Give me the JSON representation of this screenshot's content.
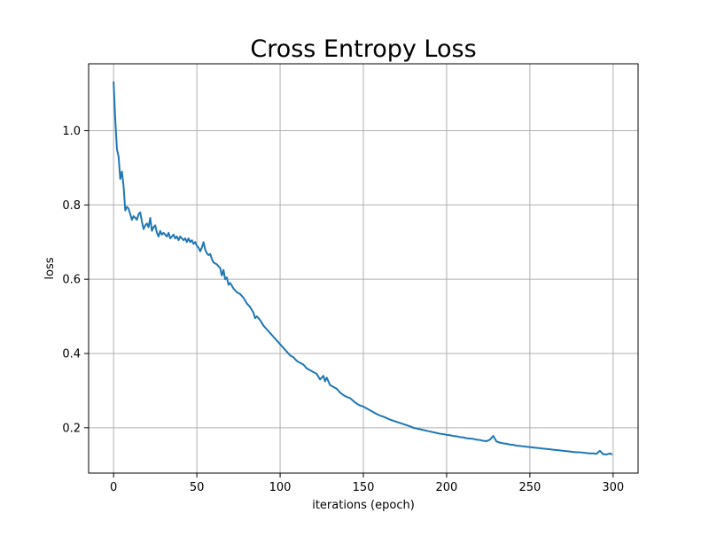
{
  "chart_data": {
    "type": "line",
    "title": "Cross Entropy Loss",
    "xlabel": "iterations (epoch)",
    "ylabel": "loss",
    "xlim": [
      -15,
      315
    ],
    "ylim": [
      0.078,
      1.18
    ],
    "grid": true,
    "xticks": [
      0,
      50,
      100,
      150,
      200,
      250,
      300
    ],
    "yticks": [
      0.2,
      0.4,
      0.6,
      0.8,
      1.0
    ],
    "xtick_labels": [
      "0",
      "50",
      "100",
      "150",
      "200",
      "250",
      "300"
    ],
    "ytick_labels": [
      "0.2",
      "0.4",
      "0.6",
      "0.8",
      "1.0"
    ],
    "series": [
      {
        "name": "loss",
        "color": "#1f77b4",
        "points": [
          [
            0,
            1.13
          ],
          [
            1,
            1.03
          ],
          [
            2,
            0.95
          ],
          [
            3,
            0.93
          ],
          [
            4,
            0.87
          ],
          [
            5,
            0.89
          ],
          [
            6,
            0.85
          ],
          [
            7,
            0.785
          ],
          [
            8,
            0.795
          ],
          [
            9,
            0.79
          ],
          [
            10,
            0.775
          ],
          [
            11,
            0.76
          ],
          [
            12,
            0.77
          ],
          [
            13,
            0.765
          ],
          [
            14,
            0.76
          ],
          [
            15,
            0.775
          ],
          [
            16,
            0.78
          ],
          [
            17,
            0.755
          ],
          [
            18,
            0.735
          ],
          [
            19,
            0.745
          ],
          [
            20,
            0.75
          ],
          [
            21,
            0.74
          ],
          [
            22,
            0.765
          ],
          [
            23,
            0.73
          ],
          [
            24,
            0.74
          ],
          [
            25,
            0.745
          ],
          [
            26,
            0.725
          ],
          [
            27,
            0.715
          ],
          [
            28,
            0.73
          ],
          [
            29,
            0.72
          ],
          [
            30,
            0.725
          ],
          [
            31,
            0.72
          ],
          [
            32,
            0.715
          ],
          [
            33,
            0.725
          ],
          [
            34,
            0.71
          ],
          [
            35,
            0.715
          ],
          [
            36,
            0.72
          ],
          [
            37,
            0.71
          ],
          [
            38,
            0.715
          ],
          [
            39,
            0.705
          ],
          [
            40,
            0.715
          ],
          [
            41,
            0.71
          ],
          [
            42,
            0.705
          ],
          [
            43,
            0.71
          ],
          [
            44,
            0.7
          ],
          [
            45,
            0.71
          ],
          [
            46,
            0.7
          ],
          [
            47,
            0.705
          ],
          [
            48,
            0.695
          ],
          [
            49,
            0.7
          ],
          [
            50,
            0.69
          ],
          [
            51,
            0.685
          ],
          [
            52,
            0.675
          ],
          [
            53,
            0.685
          ],
          [
            54,
            0.7
          ],
          [
            55,
            0.68
          ],
          [
            56,
            0.67
          ],
          [
            57,
            0.665
          ],
          [
            58,
            0.668
          ],
          [
            59,
            0.655
          ],
          [
            60,
            0.645
          ],
          [
            62,
            0.64
          ],
          [
            64,
            0.63
          ],
          [
            65,
            0.61
          ],
          [
            66,
            0.625
          ],
          [
            67,
            0.6
          ],
          [
            68,
            0.605
          ],
          [
            69,
            0.585
          ],
          [
            70,
            0.59
          ],
          [
            72,
            0.575
          ],
          [
            74,
            0.565
          ],
          [
            76,
            0.56
          ],
          [
            78,
            0.55
          ],
          [
            80,
            0.535
          ],
          [
            82,
            0.525
          ],
          [
            84,
            0.51
          ],
          [
            85,
            0.495
          ],
          [
            86,
            0.5
          ],
          [
            88,
            0.49
          ],
          [
            90,
            0.475
          ],
          [
            92,
            0.465
          ],
          [
            94,
            0.455
          ],
          [
            96,
            0.445
          ],
          [
            98,
            0.435
          ],
          [
            100,
            0.425
          ],
          [
            102,
            0.415
          ],
          [
            104,
            0.405
          ],
          [
            106,
            0.395
          ],
          [
            108,
            0.39
          ],
          [
            110,
            0.38
          ],
          [
            112,
            0.375
          ],
          [
            114,
            0.37
          ],
          [
            116,
            0.36
          ],
          [
            118,
            0.355
          ],
          [
            120,
            0.35
          ],
          [
            122,
            0.345
          ],
          [
            124,
            0.33
          ],
          [
            126,
            0.34
          ],
          [
            127,
            0.325
          ],
          [
            128,
            0.335
          ],
          [
            130,
            0.315
          ],
          [
            132,
            0.31
          ],
          [
            134,
            0.305
          ],
          [
            136,
            0.295
          ],
          [
            138,
            0.288
          ],
          [
            140,
            0.283
          ],
          [
            142,
            0.28
          ],
          [
            144,
            0.272
          ],
          [
            146,
            0.265
          ],
          [
            148,
            0.26
          ],
          [
            150,
            0.257
          ],
          [
            152,
            0.252
          ],
          [
            154,
            0.247
          ],
          [
            156,
            0.242
          ],
          [
            158,
            0.237
          ],
          [
            160,
            0.233
          ],
          [
            162,
            0.23
          ],
          [
            164,
            0.226
          ],
          [
            166,
            0.222
          ],
          [
            168,
            0.219
          ],
          [
            170,
            0.216
          ],
          [
            172,
            0.213
          ],
          [
            174,
            0.21
          ],
          [
            176,
            0.207
          ],
          [
            178,
            0.204
          ],
          [
            180,
            0.2
          ],
          [
            182,
            0.198
          ],
          [
            184,
            0.196
          ],
          [
            186,
            0.194
          ],
          [
            188,
            0.192
          ],
          [
            190,
            0.19
          ],
          [
            192,
            0.188
          ],
          [
            194,
            0.186
          ],
          [
            196,
            0.184
          ],
          [
            198,
            0.183
          ],
          [
            200,
            0.181
          ],
          [
            202,
            0.18
          ],
          [
            204,
            0.178
          ],
          [
            206,
            0.177
          ],
          [
            208,
            0.175
          ],
          [
            210,
            0.174
          ],
          [
            212,
            0.172
          ],
          [
            214,
            0.171
          ],
          [
            216,
            0.17
          ],
          [
            218,
            0.168
          ],
          [
            220,
            0.167
          ],
          [
            222,
            0.165
          ],
          [
            224,
            0.164
          ],
          [
            226,
            0.168
          ],
          [
            228,
            0.178
          ],
          [
            230,
            0.163
          ],
          [
            232,
            0.16
          ],
          [
            234,
            0.158
          ],
          [
            236,
            0.157
          ],
          [
            238,
            0.155
          ],
          [
            240,
            0.154
          ],
          [
            242,
            0.152
          ],
          [
            244,
            0.151
          ],
          [
            246,
            0.15
          ],
          [
            248,
            0.149
          ],
          [
            250,
            0.148
          ],
          [
            252,
            0.147
          ],
          [
            254,
            0.146
          ],
          [
            256,
            0.145
          ],
          [
            258,
            0.144
          ],
          [
            260,
            0.143
          ],
          [
            262,
            0.142
          ],
          [
            264,
            0.141
          ],
          [
            266,
            0.14
          ],
          [
            268,
            0.139
          ],
          [
            270,
            0.138
          ],
          [
            272,
            0.137
          ],
          [
            274,
            0.136
          ],
          [
            276,
            0.135
          ],
          [
            278,
            0.134
          ],
          [
            280,
            0.134
          ],
          [
            282,
            0.133
          ],
          [
            284,
            0.132
          ],
          [
            286,
            0.131
          ],
          [
            288,
            0.131
          ],
          [
            290,
            0.13
          ],
          [
            292,
            0.138
          ],
          [
            294,
            0.129
          ],
          [
            296,
            0.128
          ],
          [
            298,
            0.131
          ],
          [
            299,
            0.129
          ]
        ]
      }
    ]
  }
}
